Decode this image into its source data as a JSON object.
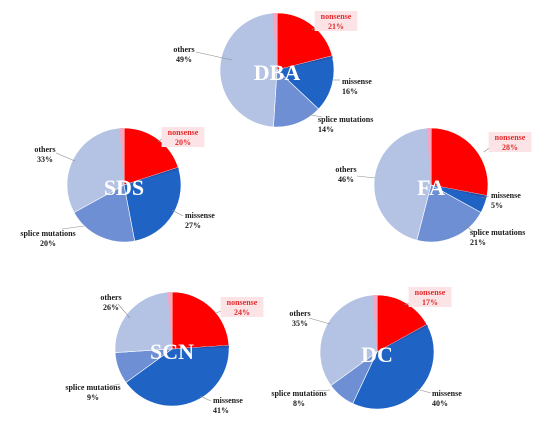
{
  "colors": {
    "nonsense": "#ff0000",
    "missense": "#1f63c4",
    "splice": "#6f8fd4",
    "others": "#b4c3e4",
    "thin_wedge": "#2b4fa8",
    "pink_wedge": "#f4a6c0",
    "label_red": "#e32b2b",
    "highlight": "#fbe3e6"
  },
  "chart_data": [
    {
      "type": "pie",
      "title": "DBA",
      "categories": [
        "nonsense",
        "missense",
        "splice mutations",
        "others"
      ],
      "values": [
        21,
        16,
        14,
        49
      ],
      "labels": [
        {
          "name": "nonsense",
          "pct": "21%"
        },
        {
          "name": "missense",
          "pct": "16%"
        },
        {
          "name": "splice mutations",
          "pct": "14%"
        },
        {
          "name": "others",
          "pct": "49%"
        }
      ]
    },
    {
      "type": "pie",
      "title": "SDS",
      "categories": [
        "nonsense",
        "missense",
        "splice mutations",
        "others"
      ],
      "values": [
        20,
        27,
        20,
        33
      ],
      "labels": [
        {
          "name": "nonsense",
          "pct": "20%"
        },
        {
          "name": "missense",
          "pct": "27%"
        },
        {
          "name": "splice mutations",
          "pct": "20%"
        },
        {
          "name": "others",
          "pct": "33%"
        }
      ]
    },
    {
      "type": "pie",
      "title": "FA",
      "categories": [
        "nonsense",
        "missense",
        "splice mutations",
        "others"
      ],
      "values": [
        28,
        5,
        21,
        46
      ],
      "labels": [
        {
          "name": "nonsense",
          "pct": "28%"
        },
        {
          "name": "missense",
          "pct": "5%"
        },
        {
          "name": "splice mutations",
          "pct": "21%"
        },
        {
          "name": "others",
          "pct": "46%"
        }
      ]
    },
    {
      "type": "pie",
      "title": "SCN",
      "categories": [
        "nonsense",
        "missense",
        "splice mutations",
        "others"
      ],
      "values": [
        24,
        41,
        9,
        26
      ],
      "labels": [
        {
          "name": "nonsense",
          "pct": "24%"
        },
        {
          "name": "missense",
          "pct": "41%"
        },
        {
          "name": "splice mutations",
          "pct": "9%"
        },
        {
          "name": "others",
          "pct": "26%"
        }
      ]
    },
    {
      "type": "pie",
      "title": "DC",
      "categories": [
        "nonsense",
        "missense",
        "splice mutations",
        "others"
      ],
      "values": [
        17,
        40,
        8,
        35
      ],
      "labels": [
        {
          "name": "nonsense",
          "pct": "17%"
        },
        {
          "name": "missense",
          "pct": "40%"
        },
        {
          "name": "splice mutations",
          "pct": "8%"
        },
        {
          "name": "others",
          "pct": "35%"
        }
      ]
    }
  ]
}
